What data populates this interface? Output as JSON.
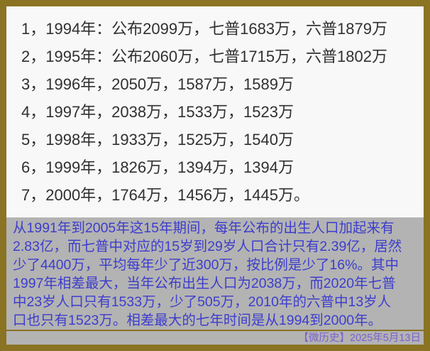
{
  "list": {
    "rows": [
      "1，1994年：公布2099万，七普1683万，六普1879万",
      "2，1995年：公布2060万，七普1715万，六普1802万",
      "3，1996年，2050万，1587万，1589万",
      "4，1997年，2038万，1533万，1523万",
      "5，1998年，1933万，1525万，1540万",
      "6，1999年，1826万，1394万，1394万",
      "7，2000年，1764万，1456万，1445万。"
    ]
  },
  "analysis": {
    "lines": [
      "从1991年到2005年这15年期间，每年公布的出生人口加起来有",
      "2.83亿，而七普中对应的15岁到29岁人口合计只有2.39亿，居然",
      "少了4400万，平均每年少了近300万，按比例是少了16%。其中",
      "1997年相差最大，当年公布出生人口为2038万，而2020年七普",
      "中23岁人口只有1533万，少了505万，2010年的六普中13岁人",
      "口也只有1523万。相差最大的七年时间是从1994到2000年。"
    ]
  },
  "footer": {
    "credit": "【微历史】2025年5月13日"
  },
  "colors": {
    "border": "#8a7323",
    "top_bg": "#f8f8f8",
    "bottom_bg": "#b3b3b3",
    "list_text": "#303030",
    "analysis_text": "#3d3dcd",
    "credit_text": "#7c5fce"
  }
}
